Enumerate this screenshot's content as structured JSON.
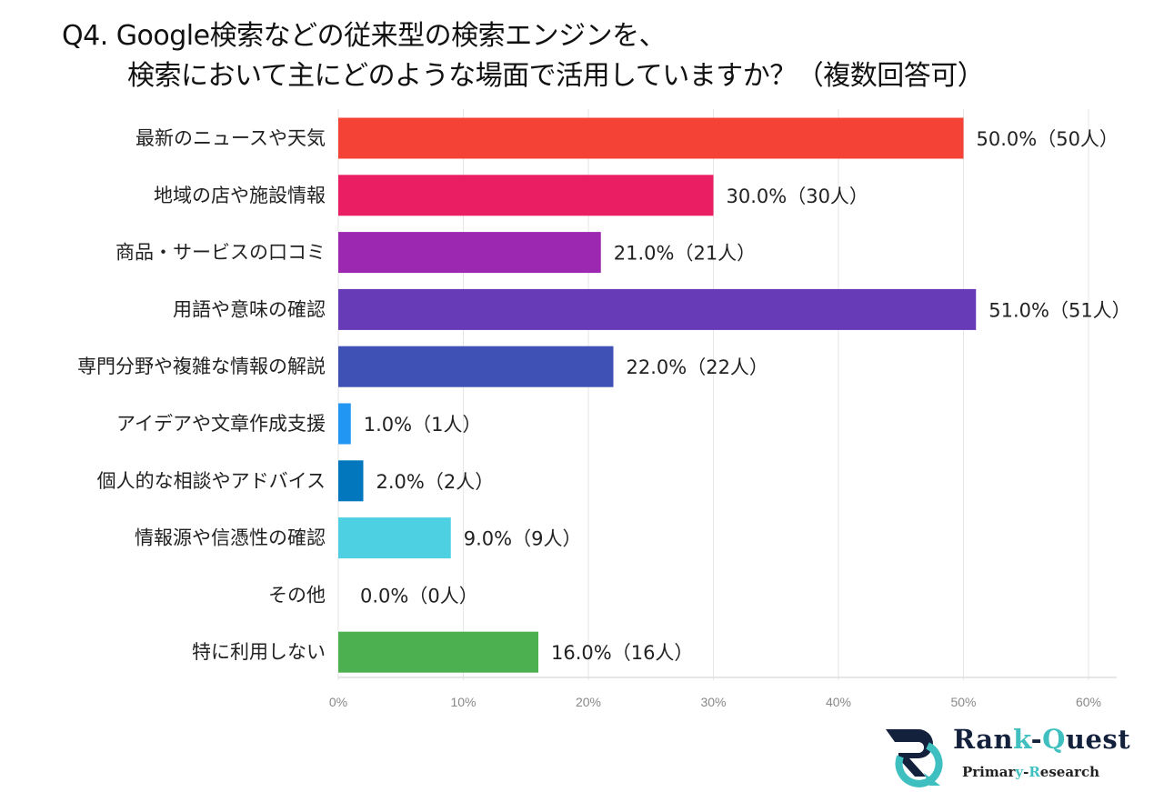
{
  "title_line1": "Q4. Google検索などの従来型の検索エンジンを、",
  "title_line2": "検索において主にどのような場面で活用していますか？（複数回答可）",
  "chart_data": {
    "type": "bar",
    "orientation": "horizontal",
    "categories": [
      "最新のニュースや天気",
      "地域の店や施設情報",
      "商品・サービスの口コミ",
      "用語や意味の確認",
      "専門分野や複雑な情報の解説",
      "アイデアや文章作成支援",
      "個人的な相談やアドバイス",
      "情報源や信憑性の確認",
      "その他",
      "特に利用しない"
    ],
    "values": [
      50.0,
      30.0,
      21.0,
      51.0,
      22.0,
      1.0,
      2.0,
      9.0,
      0.0,
      16.0
    ],
    "counts": [
      50,
      30,
      21,
      51,
      22,
      1,
      2,
      9,
      0,
      16
    ],
    "data_labels": [
      "50.0%（50人）",
      "30.0%（30人）",
      "21.0%（21人）",
      "51.0%（51人）",
      "22.0%（22人）",
      "1.0%（1人）",
      "2.0%（2人）",
      "9.0%（9人）",
      "0.0%（0人）",
      "16.0%（16人）"
    ],
    "colors": [
      "#f44336",
      "#e91e63",
      "#9c27b0",
      "#673ab7",
      "#3f51b5",
      "#2196f3",
      "#0277bd",
      "#4dd0e1",
      "#9e9e9e",
      "#4caf50"
    ],
    "xlim": [
      0,
      60
    ],
    "xticks": [
      "0%",
      "10%",
      "20%",
      "30%",
      "40%",
      "50%",
      "60%"
    ],
    "grid": true
  },
  "logo": {
    "name_part1": "Ran",
    "name_accent1": "k",
    "name_part2": "-",
    "name_accent2": "Q",
    "name_part3": "uest",
    "sub_part1": "Primar",
    "sub_accent1": "y",
    "sub_part2": "-",
    "sub_accent2": "R",
    "sub_part3": "esearch",
    "accent_color": "#3fbfbf",
    "dark_color": "#14213d"
  }
}
